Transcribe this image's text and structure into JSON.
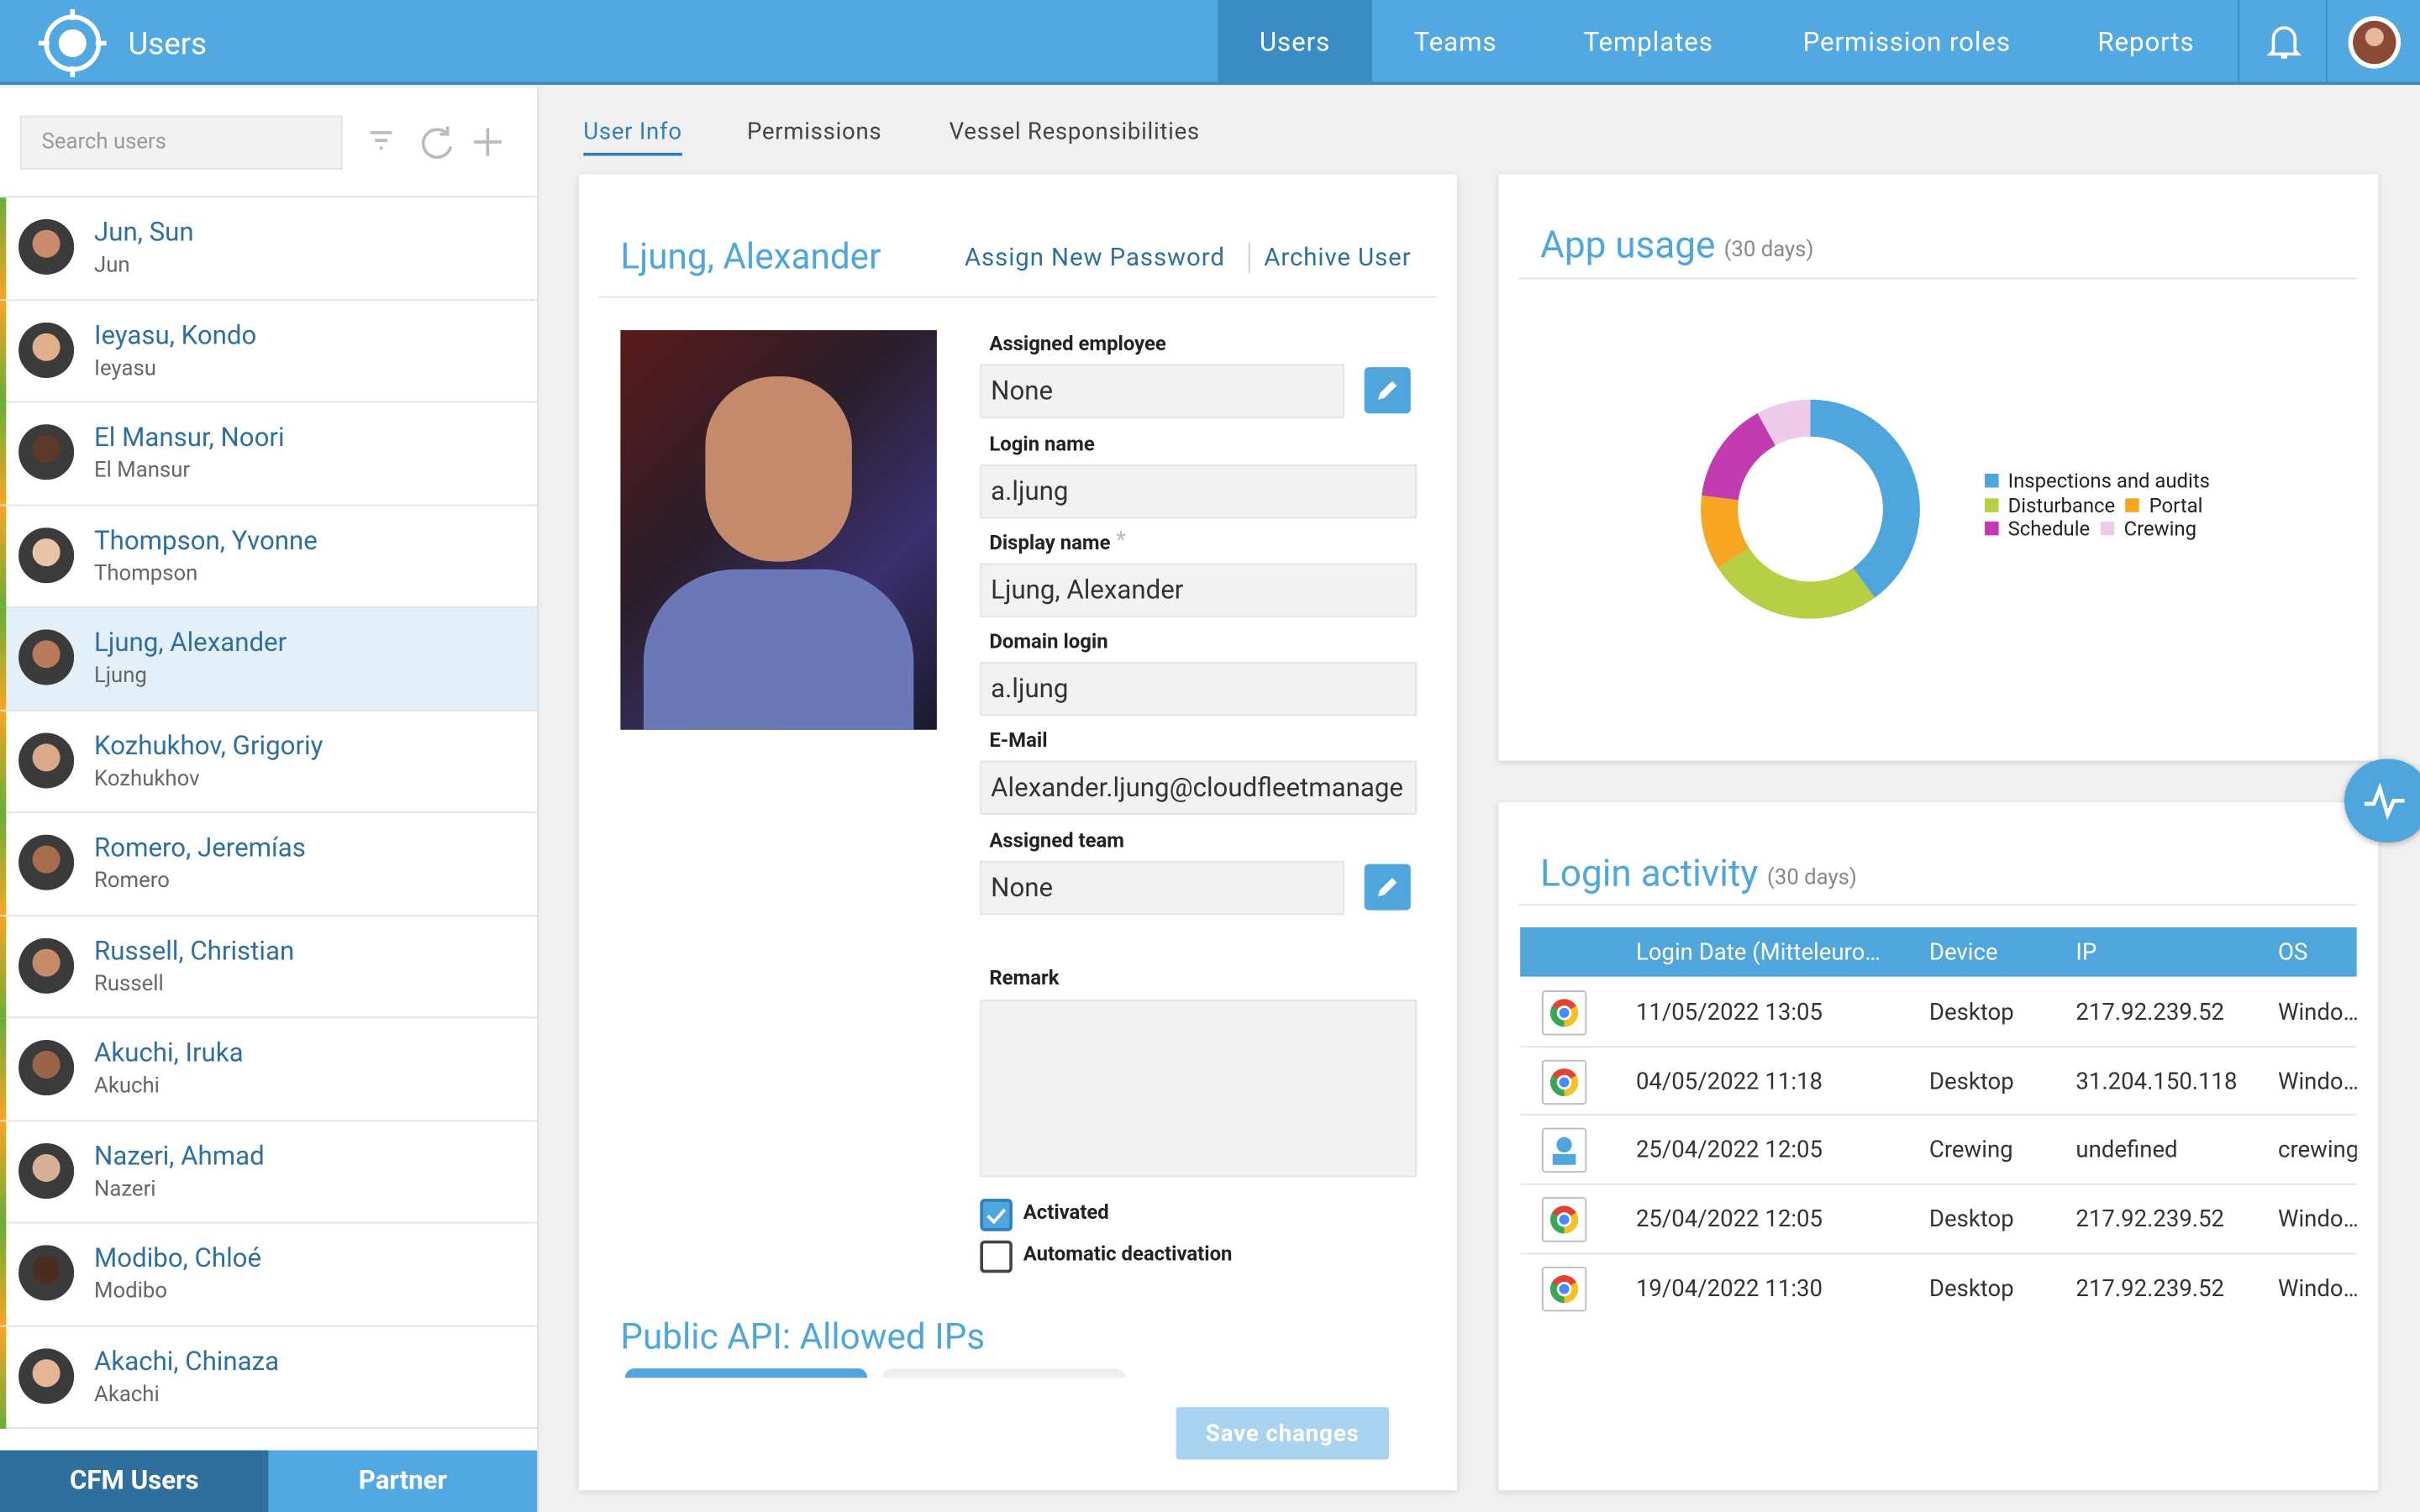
{
  "header": {
    "title": "Users",
    "nav": [
      "Users",
      "Teams",
      "Templates",
      "Permission roles",
      "Reports"
    ]
  },
  "sidebar": {
    "search_placeholder": "Search users",
    "users": [
      {
        "name": "Jun, Sun",
        "short": "Jun"
      },
      {
        "name": "Ieyasu, Kondo",
        "short": "Ieyasu"
      },
      {
        "name": "El Mansur, Noori",
        "short": "El Mansur"
      },
      {
        "name": "Thompson, Yvonne",
        "short": "Thompson"
      },
      {
        "name": "Ljung, Alexander",
        "short": "Ljung"
      },
      {
        "name": "Kozhukhov, Grigoriy",
        "short": "Kozhukhov"
      },
      {
        "name": "Romero, Jeremías",
        "short": "Romero"
      },
      {
        "name": "Russell, Christian",
        "short": "Russell"
      },
      {
        "name": "Akuchi, Iruka",
        "short": "Akuchi"
      },
      {
        "name": "Nazeri, Ahmad",
        "short": "Nazeri"
      },
      {
        "name": "Modibo, Chloé",
        "short": "Modibo"
      },
      {
        "name": "Akachi, Chinaza",
        "short": "Akachi"
      }
    ],
    "tabs": [
      "CFM Users",
      "Partner"
    ]
  },
  "tabs": [
    "User Info",
    "Permissions",
    "Vessel Responsibilities"
  ],
  "user": {
    "name": "Ljung, Alexander",
    "actions": [
      "Assign New Password",
      "Archive User"
    ],
    "fields": [
      {
        "label": "Assigned employee",
        "value": "None"
      },
      {
        "label": "Login name",
        "value": "a.ljung"
      },
      {
        "label": "Display name",
        "value": "Ljung, Alexander",
        "required": "*"
      },
      {
        "label": "Domain login",
        "value": "a.ljung"
      },
      {
        "label": "E-Mail",
        "value": "Alexander.ljung@cloudfleetmanage"
      },
      {
        "label": "Assigned team",
        "value": "None"
      }
    ],
    "remark_label": "Remark",
    "checkboxes": [
      "Activated",
      "Automatic deactivation"
    ],
    "api_title": "Public API: Allowed IPs",
    "save": "Save changes"
  },
  "chart_data": {
    "type": "pie",
    "title": "App usage",
    "subtitle": "(30 days)",
    "donut": true,
    "categories": [
      "Inspections and audits",
      "Disturbance",
      "Portal",
      "Schedule",
      "Crewing"
    ],
    "values": [
      40,
      26,
      11,
      15,
      8
    ],
    "colors": [
      "#4ea6dc",
      "#b7cf45",
      "#f6a623",
      "#c23bb0",
      "#eecbe8"
    ]
  },
  "login_activity": {
    "title": "Login activity",
    "subtitle": "(30 days)",
    "columns": [
      "Login Date (Mitteleuro…",
      "Device",
      "IP",
      "OS"
    ],
    "rows": [
      [
        "11/05/2022 13:05",
        "Desktop",
        "217.92.239.52",
        "Windo…"
      ],
      [
        "04/05/2022 11:18",
        "Desktop",
        "31.204.150.118",
        "Windo…"
      ],
      [
        "25/04/2022 12:05",
        "Crewing",
        "undefined",
        "crewing"
      ],
      [
        "25/04/2022 12:05",
        "Desktop",
        "217.92.239.52",
        "Windo…"
      ],
      [
        "19/04/2022 11:30",
        "Desktop",
        "217.92.239.52",
        "Windo…"
      ]
    ]
  }
}
